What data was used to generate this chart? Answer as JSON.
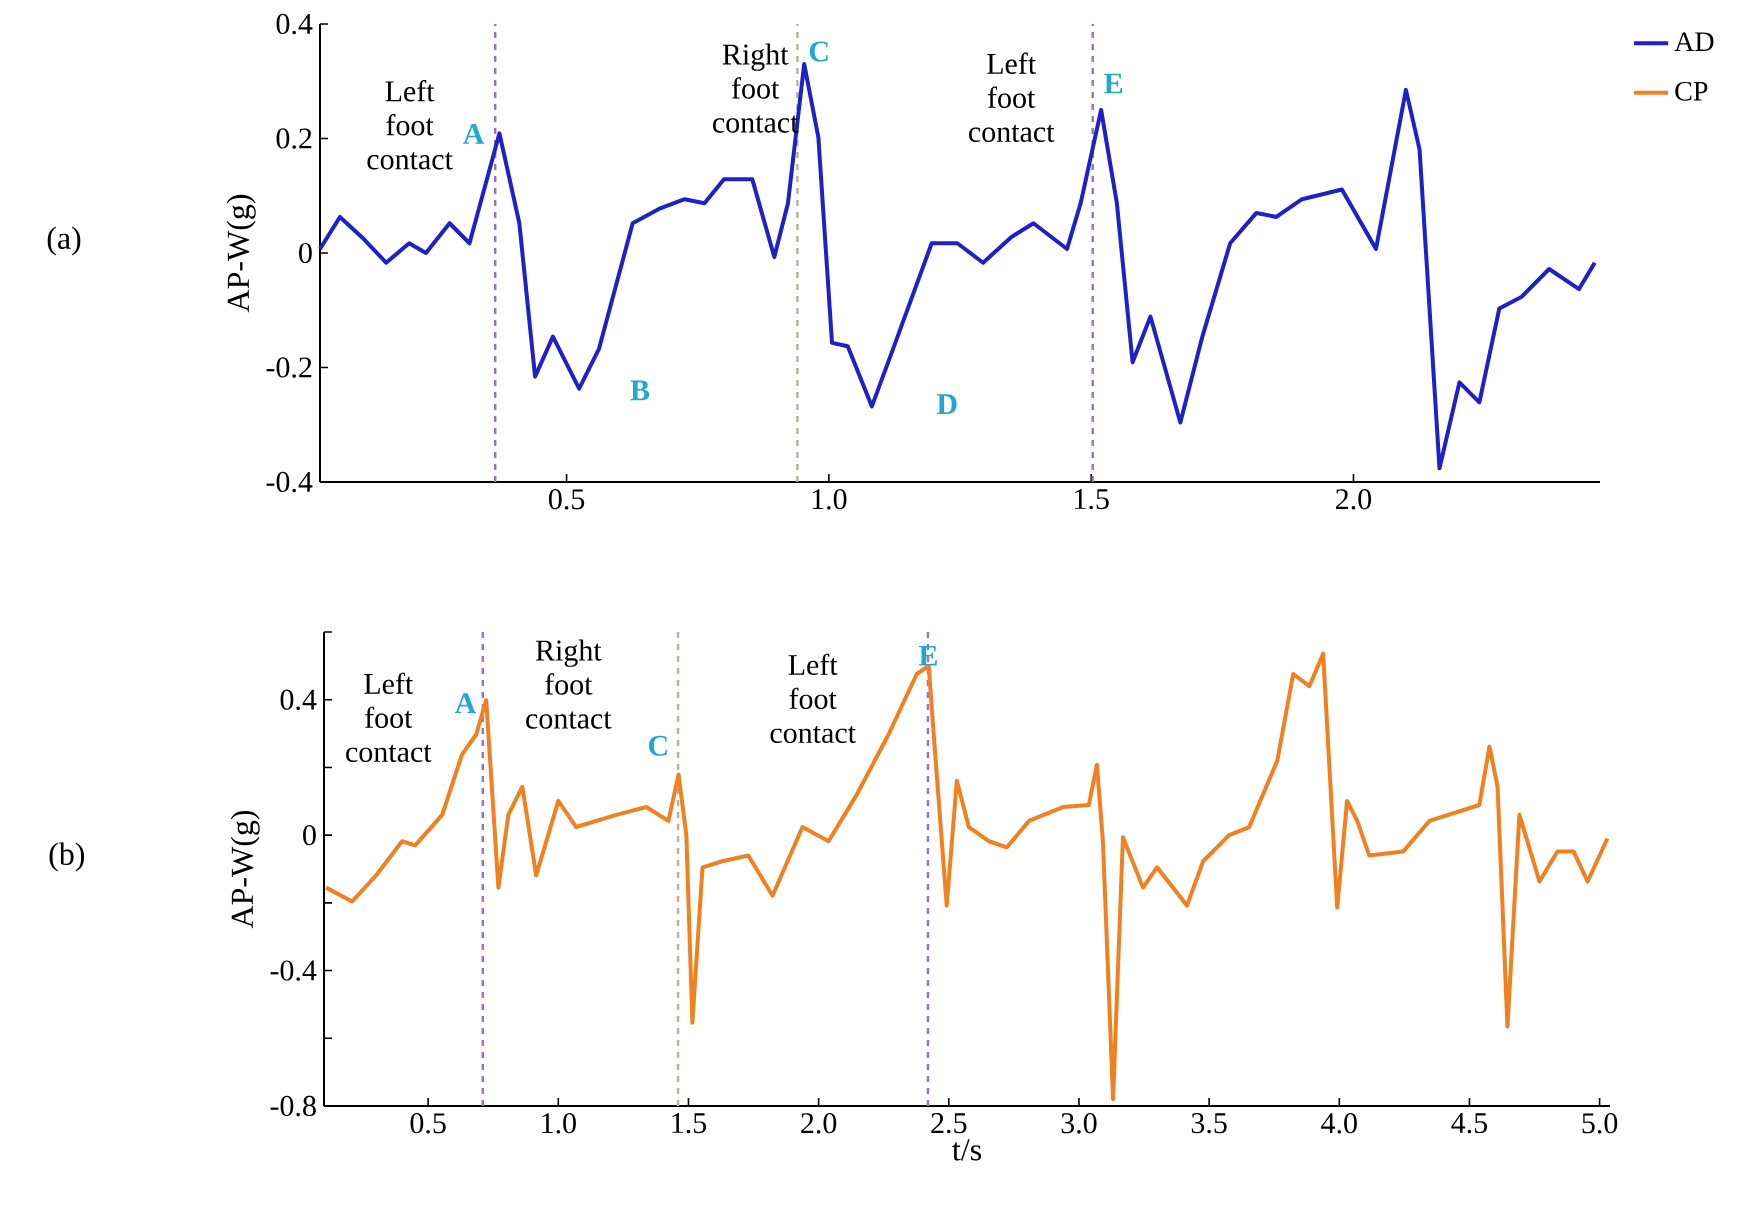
{
  "chart_data": [
    {
      "type": "line",
      "title": "(a)",
      "ylabel": "AP-W(g)",
      "legend": "right",
      "xlim": [
        0.03,
        2.47
      ],
      "ylim": [
        -0.4,
        0.4
      ],
      "xticks": [
        {
          "value": 0.5,
          "label": "0.5"
        },
        {
          "value": 1.0,
          "label": "1.0"
        },
        {
          "value": 1.5,
          "label": "1.5"
        },
        {
          "value": 2.0,
          "label": "2.0"
        }
      ],
      "yticks": [
        {
          "value": -0.4,
          "label": "-0.4"
        },
        {
          "value": -0.2,
          "label": "-0.2"
        },
        {
          "value": 0,
          "label": "0"
        },
        {
          "value": 0.2,
          "label": "0.2"
        },
        {
          "value": 0.4,
          "label": "0.4"
        }
      ],
      "series": [
        {
          "name": "AD",
          "color": "#2020c8",
          "x": [
            0.03,
            0.068,
            0.114,
            0.156,
            0.2,
            0.232,
            0.277,
            0.315,
            0.372,
            0.41,
            0.44,
            0.474,
            0.524,
            0.562,
            0.626,
            0.676,
            0.725,
            0.763,
            0.8,
            0.854,
            0.896,
            0.922,
            0.953,
            0.98,
            1.006,
            1.036,
            1.082,
            1.131,
            1.196,
            1.245,
            1.294,
            1.348,
            1.39,
            1.454,
            1.48,
            1.519,
            1.549,
            1.579,
            1.613,
            1.67,
            1.712,
            1.765,
            1.815,
            1.853,
            1.902,
            1.978,
            2.043,
            2.1,
            2.126,
            2.164,
            2.202,
            2.24,
            2.278,
            2.32,
            2.373,
            2.43,
            2.46
          ],
          "values": [
            0.007,
            0.063,
            0.024,
            -0.017,
            0.017,
            0,
            0.052,
            0.017,
            0.209,
            0.052,
            -0.216,
            -0.146,
            -0.237,
            -0.167,
            0.052,
            0.077,
            0.094,
            0.087,
            0.129,
            0.129,
            -0.007,
            0.087,
            0.33,
            0.202,
            -0.157,
            -0.163,
            -0.268,
            -0.146,
            0.017,
            0.017,
            -0.017,
            0.028,
            0.052,
            0.007,
            0.087,
            0.25,
            0.087,
            -0.191,
            -0.111,
            -0.296,
            -0.146,
            0.017,
            0.07,
            0.063,
            0.094,
            0.111,
            0.007,
            0.285,
            0.181,
            -0.376,
            -0.226,
            -0.261,
            -0.097,
            -0.077,
            -0.028,
            -0.063,
            -0.017
          ]
        }
      ],
      "ref_lines": [
        {
          "axis": "x",
          "value": 0.364,
          "color": "#9a6fc8",
          "line_style": "dashed"
        },
        {
          "axis": "x",
          "value": 0.94,
          "color": "#b8b298",
          "line_style": "dashed"
        },
        {
          "axis": "x",
          "value": 1.503,
          "color": "#9a6fc8",
          "line_style": "dashed"
        }
      ],
      "annotations": [
        "Left foot contact",
        "A",
        "B",
        "Right foot contact",
        "C",
        "D",
        "Left foot contact",
        "E"
      ]
    },
    {
      "type": "line",
      "title": "(b)",
      "ylabel": "AP-W(g)",
      "xlabel": "t/s",
      "xlim": [
        0.1,
        5.04
      ],
      "ylim": [
        -0.8,
        0.6
      ],
      "xticks": [
        {
          "value": 0.5,
          "label": "0.5"
        },
        {
          "value": 1.0,
          "label": "1.0"
        },
        {
          "value": 1.5,
          "label": "1.5"
        },
        {
          "value": 2.0,
          "label": "2.0"
        },
        {
          "value": 2.5,
          "label": "2.5"
        },
        {
          "value": 3.0,
          "label": "3.0"
        },
        {
          "value": 3.5,
          "label": "3.5"
        },
        {
          "value": 4.0,
          "label": "4.0"
        },
        {
          "value": 4.5,
          "label": "4.5"
        },
        {
          "value": 5.0,
          "label": "5.0"
        }
      ],
      "yticks": [
        {
          "value": -0.8,
          "label": "-0.8"
        },
        {
          "value": -0.6,
          "label": null
        },
        {
          "value": -0.4,
          "label": "-0.4"
        },
        {
          "value": -0.2,
          "label": null
        },
        {
          "value": 0,
          "label": "0"
        },
        {
          "value": 0.2,
          "label": null
        },
        {
          "value": 0.4,
          "label": "0.4"
        },
        {
          "value": 0.6,
          "label": null
        }
      ],
      "series": [
        {
          "name": "CP",
          "color": "#f08020",
          "x": [
            0.108,
            0.208,
            0.3,
            0.4,
            0.45,
            0.554,
            0.63,
            0.685,
            0.723,
            0.77,
            0.808,
            0.862,
            0.915,
            1.0,
            1.069,
            1.223,
            1.338,
            1.423,
            1.462,
            1.492,
            1.515,
            1.554,
            1.63,
            1.73,
            1.823,
            1.938,
            2.038,
            2.146,
            2.269,
            2.377,
            2.423,
            2.438,
            2.492,
            2.531,
            2.577,
            2.654,
            2.723,
            2.808,
            2.938,
            3.038,
            3.069,
            3.092,
            3.131,
            3.169,
            3.246,
            3.3,
            3.415,
            3.477,
            3.577,
            3.654,
            3.762,
            3.823,
            3.885,
            3.938,
            3.992,
            4.03,
            4.069,
            4.115,
            4.246,
            4.346,
            4.538,
            4.577,
            4.608,
            4.646,
            4.692,
            4.769,
            4.838,
            4.9,
            4.954,
            5.03
          ],
          "values": [
            -0.155,
            -0.196,
            -0.119,
            -0.018,
            -0.03,
            0.06,
            0.238,
            0.298,
            0.399,
            -0.155,
            0.06,
            0.143,
            -0.119,
            0.101,
            0.024,
            0.06,
            0.083,
            0.042,
            0.179,
            0,
            -0.554,
            -0.095,
            -0.077,
            -0.06,
            -0.179,
            0.024,
            -0.018,
            0.119,
            0.298,
            0.476,
            0.5,
            0.339,
            -0.208,
            0.161,
            0.024,
            -0.018,
            -0.036,
            0.042,
            0.083,
            0.089,
            0.208,
            -0.018,
            -0.78,
            -0.006,
            -0.155,
            -0.095,
            -0.208,
            -0.077,
            0,
            0.024,
            0.22,
            0.476,
            0.44,
            0.536,
            -0.214,
            0.101,
            0.042,
            -0.06,
            -0.048,
            0.042,
            0.089,
            0.262,
            0.143,
            -0.565,
            0.06,
            -0.137,
            -0.048,
            -0.048,
            -0.137,
            -0.01
          ]
        }
      ],
      "ref_lines": [
        {
          "axis": "x",
          "value": 0.71,
          "color": "#9a6fc8",
          "line_style": "dashed"
        },
        {
          "axis": "x",
          "value": 1.46,
          "color": "#b8b298",
          "line_style": "dashed"
        },
        {
          "axis": "x",
          "value": 2.42,
          "color": "#9a6fc8",
          "line_style": "dashed"
        }
      ],
      "annotations": [
        "Left foot contact",
        "A",
        "Right foot contact",
        "C",
        "Left foot contact",
        "E"
      ]
    }
  ]
}
